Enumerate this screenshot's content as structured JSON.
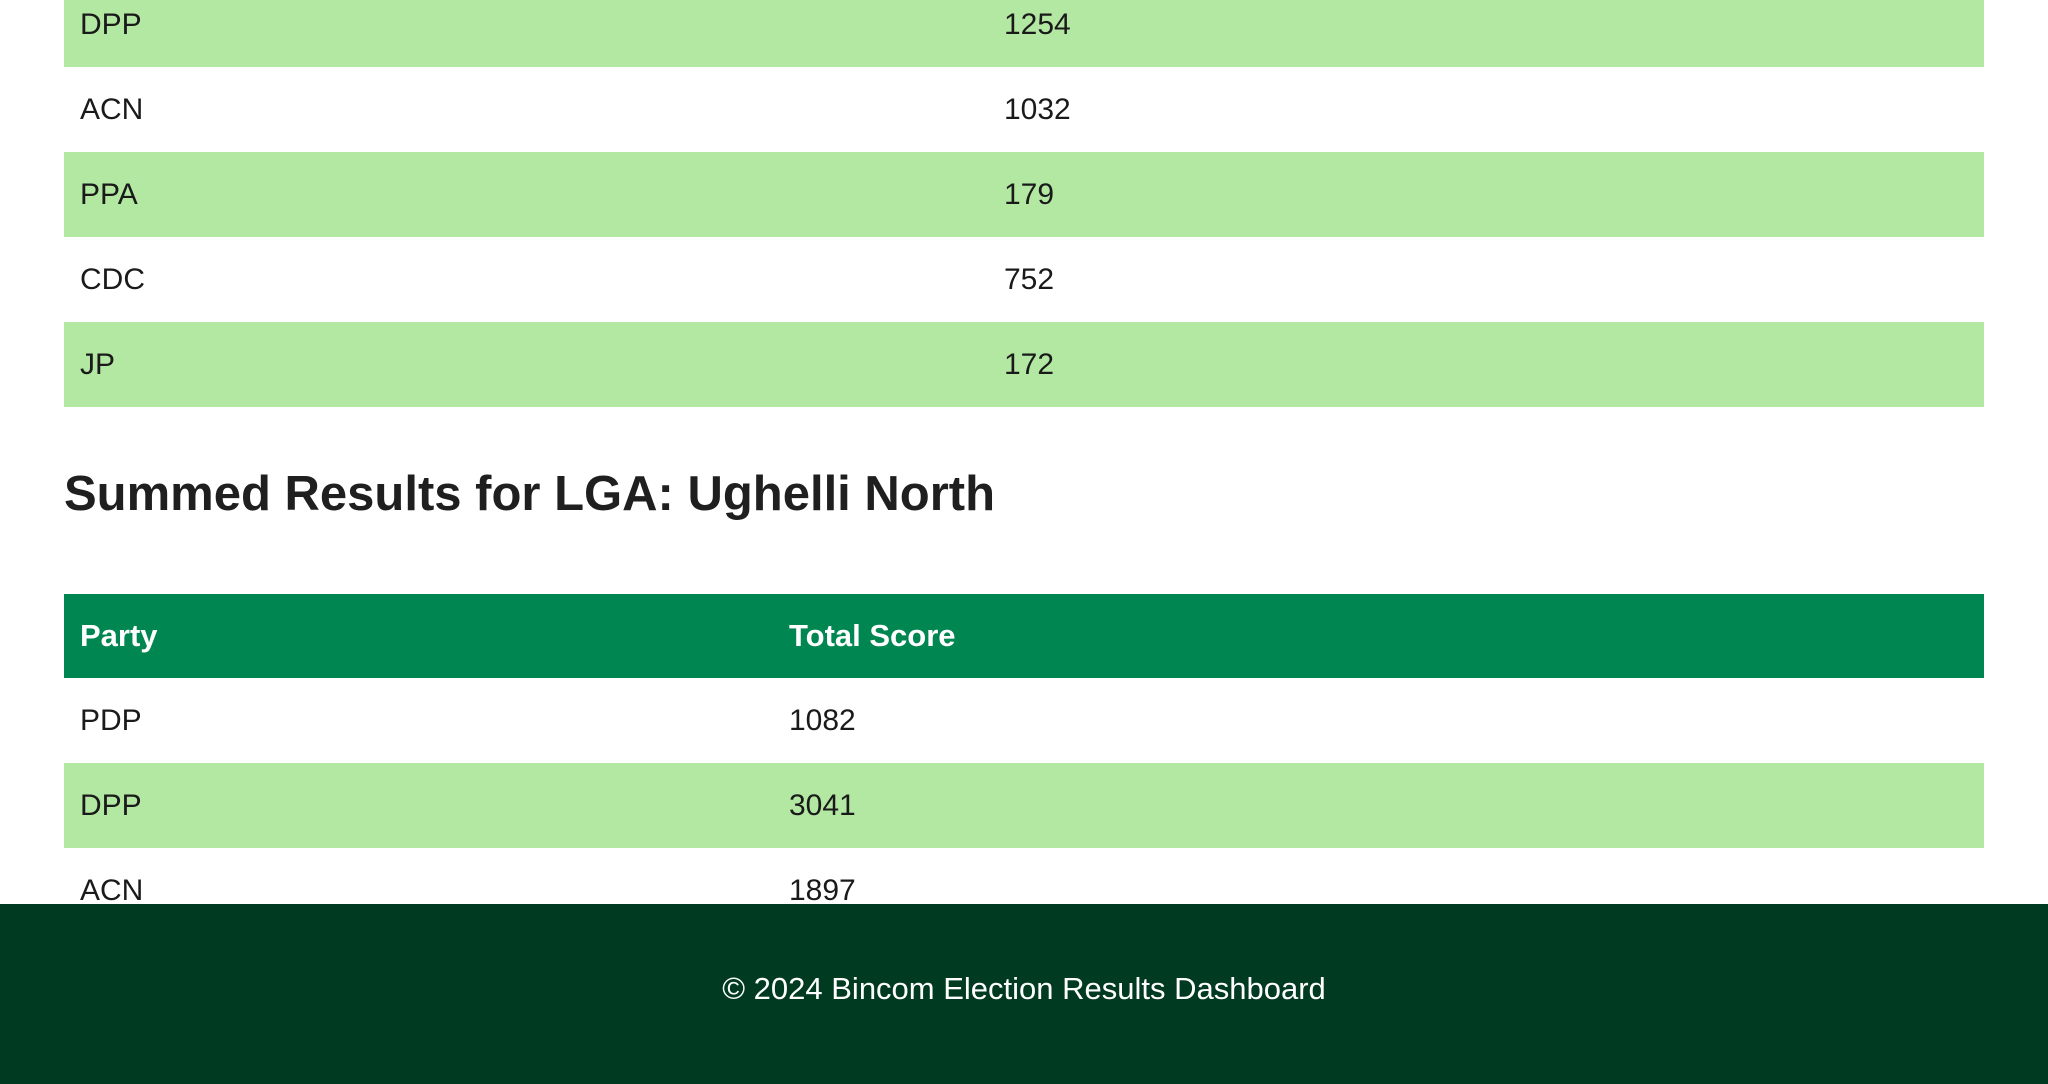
{
  "polling_unit_table": {
    "rows": [
      {
        "party": "DPP",
        "score": "1254"
      },
      {
        "party": "ACN",
        "score": "1032"
      },
      {
        "party": "PPA",
        "score": "179"
      },
      {
        "party": "CDC",
        "score": "752"
      },
      {
        "party": "JP",
        "score": "172"
      }
    ]
  },
  "lga_section": {
    "title": "Summed Results for LGA: Ughelli North",
    "headers": {
      "party": "Party",
      "total_score": "Total Score"
    },
    "rows": [
      {
        "party": "PDP",
        "score": "1082"
      },
      {
        "party": "DPP",
        "score": "3041"
      },
      {
        "party": "ACN",
        "score": "1897"
      }
    ]
  },
  "footer": {
    "text": "© 2024 Bincom Election Results Dashboard"
  },
  "colors": {
    "header_green": "#008751",
    "stripe_green": "#b2e8a2",
    "footer_dark_green": "#003a20"
  }
}
